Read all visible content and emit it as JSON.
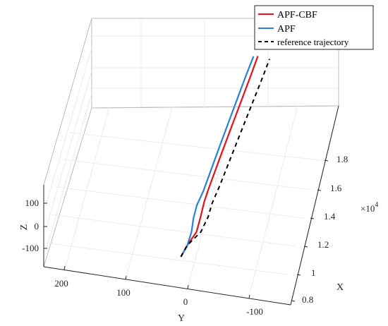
{
  "chart_data": {
    "type": "line",
    "view": "3d",
    "xlabel": "X",
    "ylabel": "Y",
    "zlabel": "Z",
    "x_exponent": "×10^4",
    "x_ticks": [
      "0.8",
      "1",
      "1.2",
      "1.4",
      "1.6",
      "1.8"
    ],
    "y_ticks": [
      "200",
      "100",
      "0",
      "-100"
    ],
    "z_ticks": [
      "100",
      "0",
      "-100"
    ],
    "xlim": [
      8000,
      19000
    ],
    "ylim": [
      -150,
      250
    ],
    "zlim": [
      -150,
      150
    ],
    "grid": true,
    "legend_position": "top-right",
    "series": [
      {
        "name": "APF-CBF",
        "color": "#e8101a",
        "style": "solid",
        "points": [
          {
            "x": 9000,
            "y": 18,
            "z": -100
          },
          {
            "x": 9600,
            "y": 12,
            "z": -95
          },
          {
            "x": 10300,
            "y": 2,
            "z": -88
          },
          {
            "x": 11000,
            "y": 0,
            "z": -75
          },
          {
            "x": 11500,
            "y": -2,
            "z": -50
          },
          {
            "x": 12000,
            "y": -5,
            "z": -35
          },
          {
            "x": 14000,
            "y": -14,
            "z": -20
          },
          {
            "x": 16000,
            "y": -23,
            "z": -8
          },
          {
            "x": 18000,
            "y": -32,
            "z": 3
          },
          {
            "x": 19000,
            "y": -36,
            "z": 8
          }
        ]
      },
      {
        "name": "APF",
        "color": "#2c7fd6",
        "style": "solid",
        "points": [
          {
            "x": 9000,
            "y": 18,
            "z": -100
          },
          {
            "x": 9600,
            "y": 12,
            "z": -97
          },
          {
            "x": 10300,
            "y": 10,
            "z": -90
          },
          {
            "x": 10900,
            "y": 11,
            "z": -78
          },
          {
            "x": 11400,
            "y": 9,
            "z": -60
          },
          {
            "x": 12000,
            "y": 3,
            "z": -45
          },
          {
            "x": 14000,
            "y": -6,
            "z": -28
          },
          {
            "x": 16000,
            "y": -15,
            "z": -14
          },
          {
            "x": 18000,
            "y": -24,
            "z": -2
          },
          {
            "x": 19000,
            "y": -29,
            "z": 4
          }
        ]
      },
      {
        "name": "reference trajectory",
        "color": "#000000",
        "style": "dashed",
        "points": [
          {
            "x": 9000,
            "y": 18,
            "z": -100
          },
          {
            "x": 9600,
            "y": 12,
            "z": -95
          },
          {
            "x": 10300,
            "y": -5,
            "z": -85
          },
          {
            "x": 11000,
            "y": -12,
            "z": -72
          },
          {
            "x": 11600,
            "y": -14,
            "z": -60
          },
          {
            "x": 12500,
            "y": -20,
            "z": -52
          },
          {
            "x": 14000,
            "y": -28,
            "z": -40
          },
          {
            "x": 16000,
            "y": -39,
            "z": -22
          },
          {
            "x": 18000,
            "y": -50,
            "z": -5
          },
          {
            "x": 19000,
            "y": -55,
            "z": 3
          }
        ]
      }
    ]
  }
}
